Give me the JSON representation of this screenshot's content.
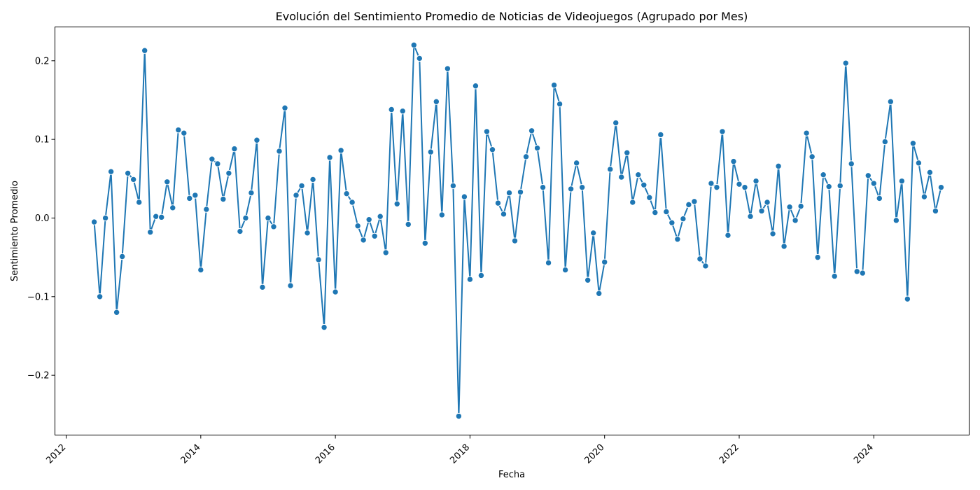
{
  "chart_data": {
    "type": "line",
    "title": "Evolución del Sentimiento Promedio de Noticias de Videojuegos (Agrupado por Mes)",
    "xlabel": "Fecha",
    "ylabel": "Sentimiento Promedio",
    "x_ticks": [
      "2012",
      "2014",
      "2016",
      "2018",
      "2020",
      "2022",
      "2024"
    ],
    "y_ticks": [
      "−0.2",
      "−0.1",
      "0.0",
      "0.1",
      "0.2"
    ],
    "y_tick_values": [
      -0.2,
      -0.1,
      0.0,
      0.1,
      0.2
    ],
    "xlim": [
      "2011-11",
      "2025-06"
    ],
    "ylim": [
      -0.276,
      0.243
    ],
    "grid": false,
    "legend": "none",
    "line_color": "#1f77b4",
    "series": [
      {
        "x": [
          "2012-06",
          "2012-07",
          "2012-08",
          "2012-09",
          "2012-10",
          "2012-11",
          "2012-12",
          "2013-01",
          "2013-02",
          "2013-03",
          "2013-04",
          "2013-05",
          "2013-06",
          "2013-07",
          "2013-08",
          "2013-09",
          "2013-10",
          "2013-11",
          "2013-12",
          "2014-01",
          "2014-02",
          "2014-03",
          "2014-04",
          "2014-05",
          "2014-06",
          "2014-07",
          "2014-08",
          "2014-09",
          "2014-10",
          "2014-11",
          "2014-12",
          "2015-01",
          "2015-02",
          "2015-03",
          "2015-04",
          "2015-05",
          "2015-06",
          "2015-07",
          "2015-08",
          "2015-09",
          "2015-10",
          "2015-11",
          "2015-12",
          "2016-01",
          "2016-02",
          "2016-03",
          "2016-04",
          "2016-05",
          "2016-06",
          "2016-07",
          "2016-08",
          "2016-09",
          "2016-10",
          "2016-11",
          "2016-12",
          "2017-01",
          "2017-02",
          "2017-03",
          "2017-04",
          "2017-05",
          "2017-06",
          "2017-07",
          "2017-08",
          "2017-09",
          "2017-10",
          "2017-11",
          "2017-12",
          "2018-01",
          "2018-02",
          "2018-03",
          "2018-04",
          "2018-05",
          "2018-06",
          "2018-07",
          "2018-08",
          "2018-09",
          "2018-10",
          "2018-11",
          "2018-12",
          "2019-01",
          "2019-02",
          "2019-03",
          "2019-04",
          "2019-05",
          "2019-06",
          "2019-07",
          "2019-08",
          "2019-09",
          "2019-10",
          "2019-11",
          "2019-12",
          "2020-01",
          "2020-02",
          "2020-03",
          "2020-04",
          "2020-05",
          "2020-06",
          "2020-07",
          "2020-08",
          "2020-09",
          "2020-10",
          "2020-11",
          "2020-12",
          "2021-01",
          "2021-02",
          "2021-03",
          "2021-04",
          "2021-05",
          "2021-06",
          "2021-07",
          "2021-08",
          "2021-09",
          "2021-10",
          "2021-11",
          "2021-12",
          "2022-01",
          "2022-02",
          "2022-03",
          "2022-04",
          "2022-05",
          "2022-06",
          "2022-07",
          "2022-08",
          "2022-09",
          "2022-10",
          "2022-11",
          "2022-12",
          "2023-01",
          "2023-02",
          "2023-03",
          "2023-04",
          "2023-05",
          "2023-06",
          "2023-07",
          "2023-08",
          "2023-09",
          "2023-10",
          "2023-11",
          "2023-12",
          "2024-01",
          "2024-02",
          "2024-03",
          "2024-04",
          "2024-05",
          "2024-06",
          "2024-07",
          "2024-08",
          "2024-09",
          "2024-10",
          "2024-11",
          "2024-12",
          "2025-01"
        ],
        "y": [
          -0.005,
          -0.1,
          0.0,
          0.059,
          -0.12,
          -0.049,
          0.057,
          0.049,
          0.02,
          0.213,
          -0.018,
          0.002,
          0.001,
          0.046,
          0.013,
          0.112,
          0.108,
          0.025,
          0.029,
          -0.066,
          0.011,
          0.075,
          0.069,
          0.024,
          0.057,
          0.088,
          -0.017,
          0.0,
          0.032,
          0.099,
          -0.088,
          0.0,
          -0.011,
          0.085,
          0.14,
          -0.086,
          0.029,
          0.041,
          -0.019,
          0.049,
          -0.053,
          -0.139,
          0.077,
          -0.094,
          0.086,
          0.031,
          0.02,
          -0.01,
          -0.028,
          -0.002,
          -0.023,
          0.002,
          -0.044,
          0.138,
          0.018,
          0.136,
          -0.008,
          0.22,
          0.203,
          -0.032,
          0.084,
          0.148,
          0.004,
          0.19,
          0.041,
          -0.252,
          0.027,
          -0.078,
          0.168,
          -0.073,
          0.11,
          0.087,
          0.019,
          0.005,
          0.032,
          -0.029,
          0.033,
          0.078,
          0.111,
          0.089,
          0.039,
          -0.057,
          0.169,
          0.145,
          -0.066,
          0.037,
          0.07,
          0.039,
          -0.079,
          -0.019,
          -0.096,
          -0.056,
          0.062,
          0.121,
          0.052,
          0.083,
          0.02,
          0.055,
          0.042,
          0.026,
          0.007,
          0.106,
          0.008,
          -0.006,
          -0.027,
          -0.001,
          0.017,
          0.021,
          -0.052,
          -0.061,
          0.044,
          0.039,
          0.11,
          -0.022,
          0.072,
          0.043,
          0.039,
          0.002,
          0.047,
          0.009,
          0.02,
          -0.02,
          0.066,
          -0.036,
          0.014,
          -0.003,
          0.015,
          0.108,
          0.078,
          -0.05,
          0.055,
          0.04,
          -0.074,
          0.041,
          0.197,
          0.069,
          -0.068,
          -0.07,
          0.054,
          0.044,
          0.025,
          0.097,
          0.148,
          -0.003,
          0.047,
          -0.103,
          0.095,
          0.07,
          0.027,
          0.058,
          0.009,
          0.039
        ]
      }
    ]
  }
}
